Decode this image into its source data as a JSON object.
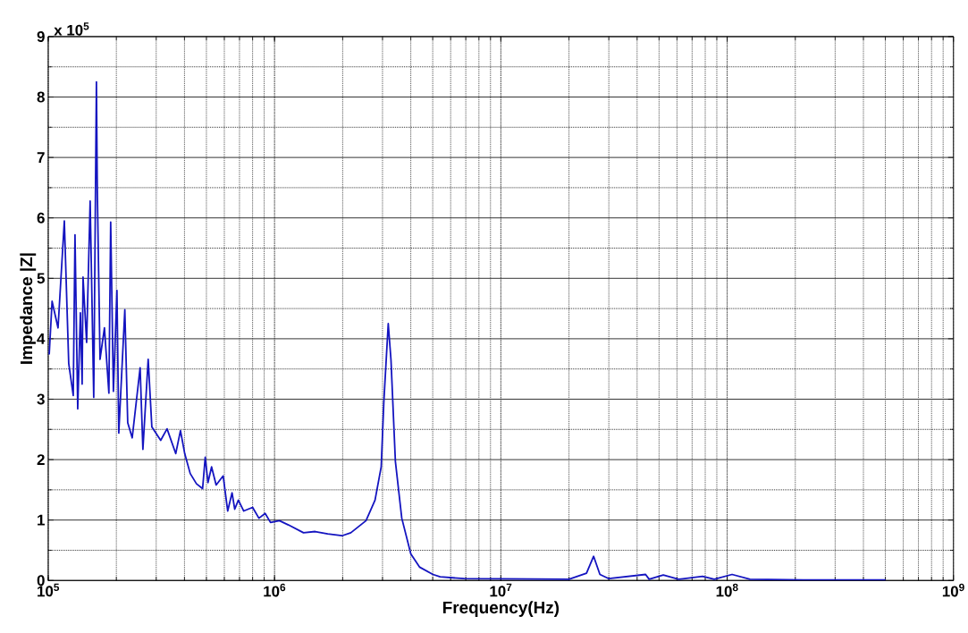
{
  "chart_data": {
    "type": "line",
    "xlabel": "Frequency(Hz)",
    "ylabel": "Impedance |Z|",
    "annotations": [
      "x 10$^{5}$"
    ],
    "log": "x",
    "grid": true,
    "marker": "none",
    "line_style": "solid",
    "xlim": [
      100000,
      1000000000
    ],
    "ylim": [
      0,
      9
    ],
    "xticks": [
      {
        "value": 100000,
        "label": "10$^{5}$"
      },
      {
        "value": 1000000,
        "label": "10$^{6}$"
      },
      {
        "value": 10000000,
        "label": "10$^{7}$"
      },
      {
        "value": 100000000,
        "label": "10$^{8}$"
      },
      {
        "value": 1000000000,
        "label": "10$^{9}$"
      }
    ],
    "yticks": [
      0,
      1,
      2,
      3,
      4,
      5,
      6,
      7,
      8,
      9
    ],
    "series": [
      {
        "color": "#1414c0",
        "x": [
          101000,
          104000,
          110500,
          117800,
          123200,
          129000,
          131300,
          135000,
          138700,
          141200,
          142500,
          147800,
          153200,
          158900,
          163300,
          164800,
          169400,
          177200,
          185400,
          188800,
          194100,
          201200,
          205000,
          218000,
          224500,
          235000,
          254700,
          262000,
          276500,
          287000,
          314000,
          335000,
          366000,
          384000,
          401000,
          424000,
          452000,
          481000,
          494000,
          508000,
          527000,
          552000,
          593000,
          621000,
          649000,
          667000,
          692000,
          731000,
          800000,
          853000,
          909000,
          960000,
          1051000,
          1151000,
          1343000,
          1512000,
          1717000,
          1986000,
          2173000,
          2536000,
          2780000,
          2960000,
          3040000,
          3180000,
          3270000,
          3420000,
          3650000,
          4000000,
          4380000,
          5010000,
          5390000,
          6890000,
          20000000,
          23900000,
          25700000,
          27400000,
          30000000,
          43600000,
          45200000,
          52200000,
          61000000,
          77900000,
          87700000,
          105100000,
          126100000,
          217000000,
          501000000
        ],
        "values": [
          3.74,
          4.62,
          4.18,
          5.95,
          3.59,
          3.06,
          5.72,
          2.84,
          4.43,
          3.25,
          5.02,
          3.94,
          6.28,
          3.03,
          8.25,
          6.45,
          3.66,
          4.18,
          3.1,
          5.93,
          3.13,
          4.8,
          2.44,
          4.48,
          2.61,
          2.36,
          3.52,
          2.17,
          3.66,
          2.54,
          2.32,
          2.51,
          2.1,
          2.48,
          2.1,
          1.77,
          1.6,
          1.52,
          2.04,
          1.62,
          1.88,
          1.58,
          1.73,
          1.15,
          1.45,
          1.18,
          1.33,
          1.15,
          1.21,
          1.03,
          1.11,
          0.96,
          0.99,
          0.92,
          0.79,
          0.81,
          0.77,
          0.74,
          0.79,
          0.99,
          1.33,
          1.88,
          2.95,
          4.25,
          3.65,
          1.97,
          1.03,
          0.44,
          0.22,
          0.1,
          0.06,
          0.03,
          0.02,
          0.12,
          0.4,
          0.1,
          0.03,
          0.1,
          0.02,
          0.09,
          0.02,
          0.07,
          0.02,
          0.1,
          0.02,
          0.01,
          0.01
        ]
      }
    ]
  }
}
